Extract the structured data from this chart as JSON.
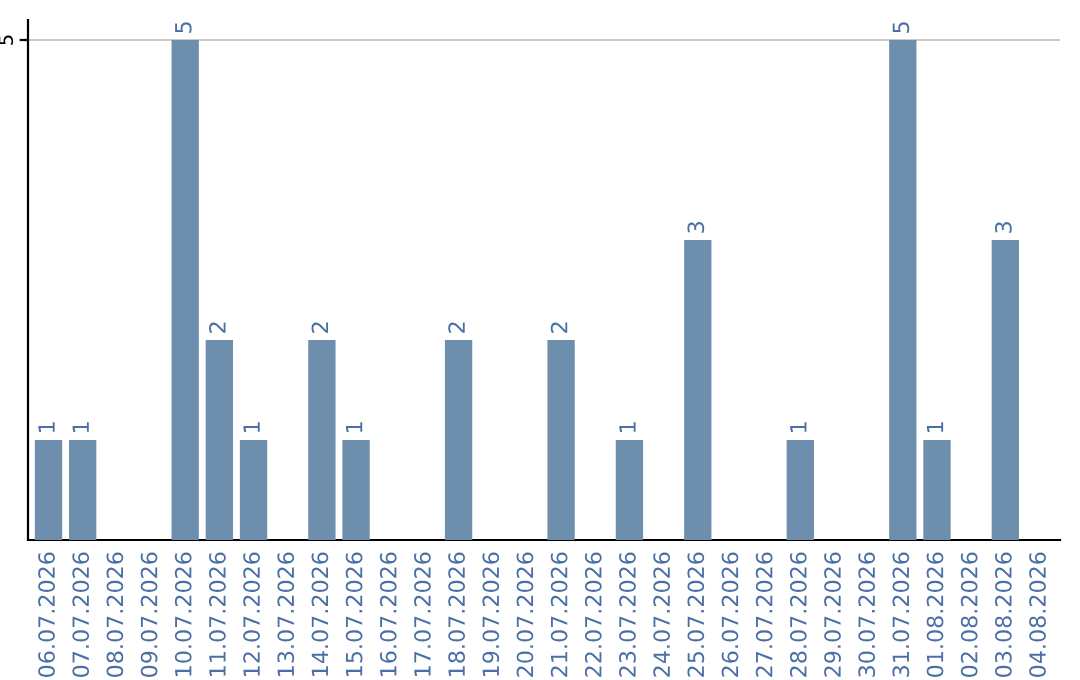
{
  "chart_data": {
    "type": "bar",
    "categories": [
      "06.07.2026",
      "07.07.2026",
      "08.07.2026",
      "09.07.2026",
      "10.07.2026",
      "11.07.2026",
      "12.07.2026",
      "13.07.2026",
      "14.07.2026",
      "15.07.2026",
      "16.07.2026",
      "17.07.2026",
      "18.07.2026",
      "19.07.2026",
      "20.07.2026",
      "21.07.2026",
      "22.07.2026",
      "23.07.2026",
      "24.07.2026",
      "25.07.2026",
      "26.07.2026",
      "27.07.2026",
      "28.07.2026",
      "29.07.2026",
      "30.07.2026",
      "31.07.2026",
      "01.08.2026",
      "02.08.2026",
      "03.08.2026",
      "04.08.2026"
    ],
    "values": [
      1,
      1,
      0,
      0,
      5,
      2,
      1,
      0,
      2,
      1,
      0,
      0,
      2,
      0,
      0,
      2,
      0,
      1,
      0,
      3,
      0,
      0,
      1,
      0,
      0,
      5,
      1,
      0,
      3,
      0
    ],
    "value_labels": [
      "1",
      "1",
      null,
      null,
      "5",
      "2",
      "1",
      null,
      "2",
      "1",
      null,
      null,
      "2",
      null,
      null,
      "2",
      null,
      "1",
      null,
      "3",
      null,
      null,
      "1",
      null,
      null,
      "5",
      "1",
      null,
      "3",
      null
    ],
    "color": "#6d8fad",
    "ylim": [
      0,
      5.2
    ],
    "yticks": [
      5
    ],
    "grid": "y"
  }
}
